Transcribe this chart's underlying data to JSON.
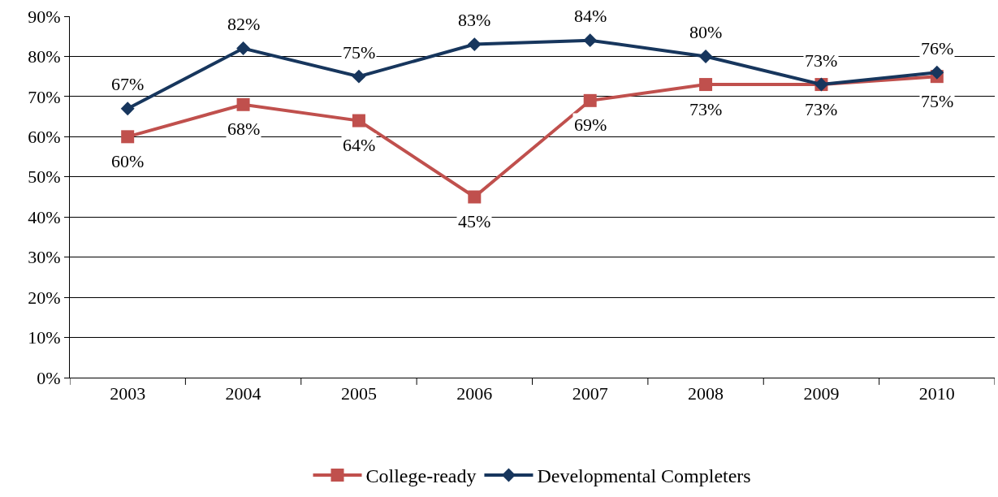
{
  "chart_data": {
    "type": "line",
    "categories": [
      "2003",
      "2004",
      "2005",
      "2006",
      "2007",
      "2008",
      "2009",
      "2010"
    ],
    "series": [
      {
        "name": "College-ready",
        "color": "#c0504d",
        "marker": "square",
        "values": [
          60,
          68,
          64,
          45,
          69,
          73,
          73,
          75
        ],
        "value_labels": [
          "60%",
          "68%",
          "64%",
          "45%",
          "69%",
          "73%",
          "73%",
          "75%"
        ]
      },
      {
        "name": "Developmental Completers",
        "color": "#17365d",
        "marker": "diamond",
        "values": [
          67,
          82,
          75,
          83,
          84,
          80,
          73,
          76
        ],
        "value_labels": [
          "67%",
          "82%",
          "75%",
          "83%",
          "84%",
          "80%",
          "73%",
          "76%"
        ]
      }
    ],
    "ylim": [
      0,
      90
    ],
    "yticks": [
      {
        "value": 0,
        "label": "0%"
      },
      {
        "value": 10,
        "label": "10%"
      },
      {
        "value": 20,
        "label": "20%"
      },
      {
        "value": 30,
        "label": "30%"
      },
      {
        "value": 40,
        "label": "40%"
      },
      {
        "value": 50,
        "label": "50%"
      },
      {
        "value": 60,
        "label": "60%"
      },
      {
        "value": 70,
        "label": "70%"
      },
      {
        "value": 80,
        "label": "80%"
      },
      {
        "value": 90,
        "label": "90%"
      }
    ],
    "grid": "y",
    "legend": "bottom",
    "line_style": "solid"
  }
}
